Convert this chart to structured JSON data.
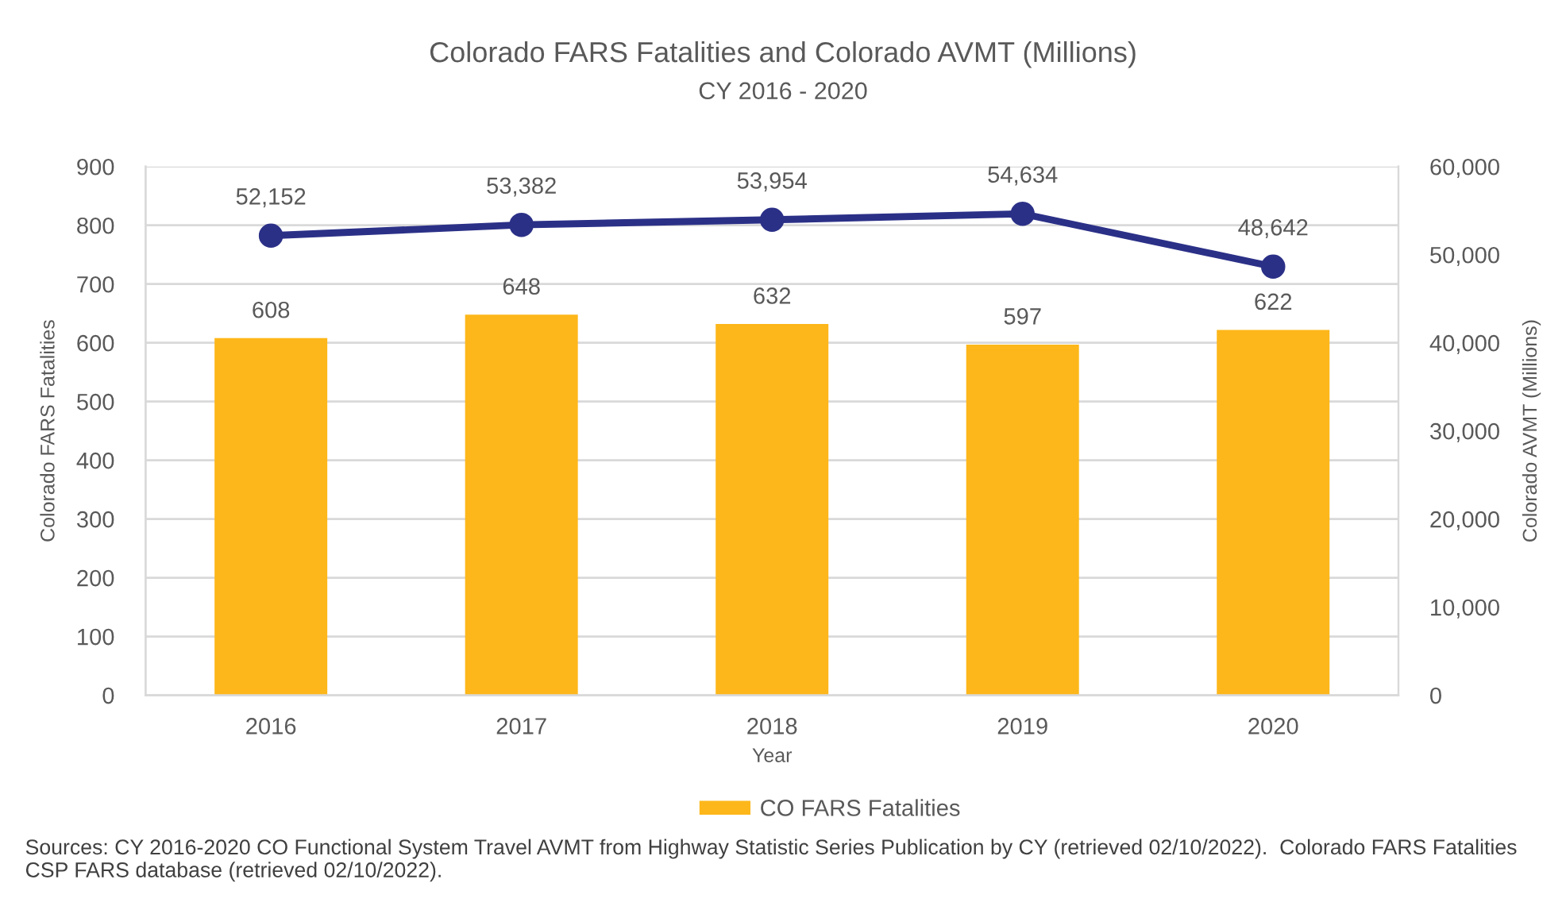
{
  "chart_data": {
    "type": "bar",
    "title": "Colorado FARS Fatalities and Colorado AVMT (Millions)",
    "subtitle": "CY 2016 - 2020",
    "xlabel": "Year",
    "ylabel": "Colorado FARS Fatalities",
    "y2label": "Colorado AVMT (Millions)",
    "categories": [
      "2016",
      "2017",
      "2018",
      "2019",
      "2020"
    ],
    "series": [
      {
        "name": "CO FARS Fatalities",
        "color": "#fdb71a",
        "values": [
          608,
          648,
          632,
          597,
          622
        ],
        "value_labels": [
          "608",
          "648",
          "632",
          "597",
          "622"
        ]
      },
      {
        "type": "line",
        "axis": "y2",
        "color": "#2b3087",
        "values": [
          52152,
          53382,
          53954,
          54634,
          48642
        ],
        "value_labels": [
          "52,152",
          "53,382",
          "53,954",
          "54,634",
          "48,642"
        ]
      }
    ],
    "ylim": [
      0,
      900
    ],
    "yticks": [
      0,
      100,
      200,
      300,
      400,
      500,
      600,
      700,
      800,
      900
    ],
    "y2lim": [
      0,
      60000
    ],
    "y2ticks": [
      0,
      {
        "value": 10000,
        "label": "10,000"
      },
      {
        "value": 20000,
        "label": "20,000"
      },
      {
        "value": 30000,
        "label": "30,000"
      },
      {
        "value": 40000,
        "label": "40,000"
      },
      {
        "value": 50000,
        "label": "50,000"
      },
      {
        "value": 60000,
        "label": "60,000"
      }
    ],
    "grid": "y",
    "legend": "bottom",
    "marker": "circle",
    "line_style": "solid",
    "annotations": [
      "Sources: CY 2016-2020 CO Functional System Travel AVMT from Highway Statistic Series Publication by CY (retrieved 02/10/2022).  Colorado FARS Fatalities CSP FARS database (retrieved 02/10/2022)."
    ]
  }
}
